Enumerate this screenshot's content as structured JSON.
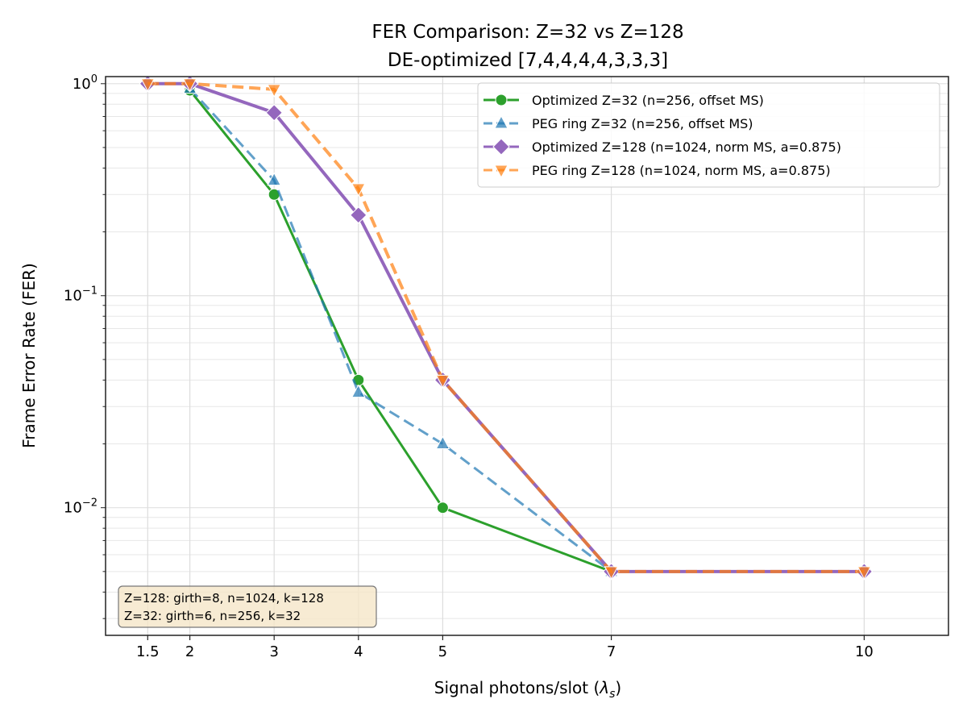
{
  "chart_data": {
    "type": "line",
    "title": "FER Comparison: Z=32 vs Z=128",
    "subtitle": "DE-optimized [7,4,4,4,4,3,3,3]",
    "xlabel": "Signal photons/slot (λs)",
    "ylabel": "Frame Error Rate (FER)",
    "xlim": [
      1.0,
      11.0
    ],
    "ylim": [
      0.0025,
      1.08
    ],
    "yscale": "log",
    "grid": true,
    "legend_position": "top-right",
    "x_ticks": [
      1.5,
      2,
      3,
      4,
      5,
      7,
      10
    ],
    "x_tick_labels": [
      "1.5",
      "2",
      "3",
      "4",
      "5",
      "7",
      "10"
    ],
    "y_ticks": [
      1,
      0.1,
      0.01
    ],
    "y_tick_labels": [
      "10^0",
      "10^-1",
      "10^-2"
    ],
    "series": [
      {
        "name": "Optimized Z=32 (n=256, offset MS)",
        "color": "#2ca02c",
        "style": "solid",
        "marker": "circle",
        "x": [
          2,
          3,
          4,
          5,
          7
        ],
        "y": [
          0.93,
          0.3,
          0.04,
          0.01,
          0.005
        ]
      },
      {
        "name": "PEG ring Z=32 (n=256, offset MS)",
        "color": "#1f77b4",
        "style": "dashed",
        "marker": "triangle-up",
        "x": [
          2,
          3,
          4,
          5,
          7
        ],
        "y": [
          0.95,
          0.35,
          0.035,
          0.02,
          0.005
        ]
      },
      {
        "name": "Optimized Z=128 (n=1024, norm MS, a=0.875)",
        "color": "#9467bd",
        "style": "solid",
        "marker": "diamond",
        "x": [
          1.5,
          2,
          3,
          4,
          5,
          7,
          10
        ],
        "y": [
          1.0,
          1.0,
          0.73,
          0.24,
          0.04,
          0.005,
          0.005
        ]
      },
      {
        "name": "PEG ring Z=128 (n=1024, norm MS, a=0.875)",
        "color": "#ff7f0e",
        "style": "dashed",
        "marker": "triangle-down",
        "x": [
          1.5,
          2,
          3,
          4,
          5,
          7,
          10
        ],
        "y": [
          1.0,
          1.0,
          0.94,
          0.32,
          0.04,
          0.005,
          0.005
        ]
      }
    ],
    "annotation": [
      "Z=128: girth=8, n=1024, k=128",
      "Z=32: girth=6, n=256, k=32"
    ]
  }
}
